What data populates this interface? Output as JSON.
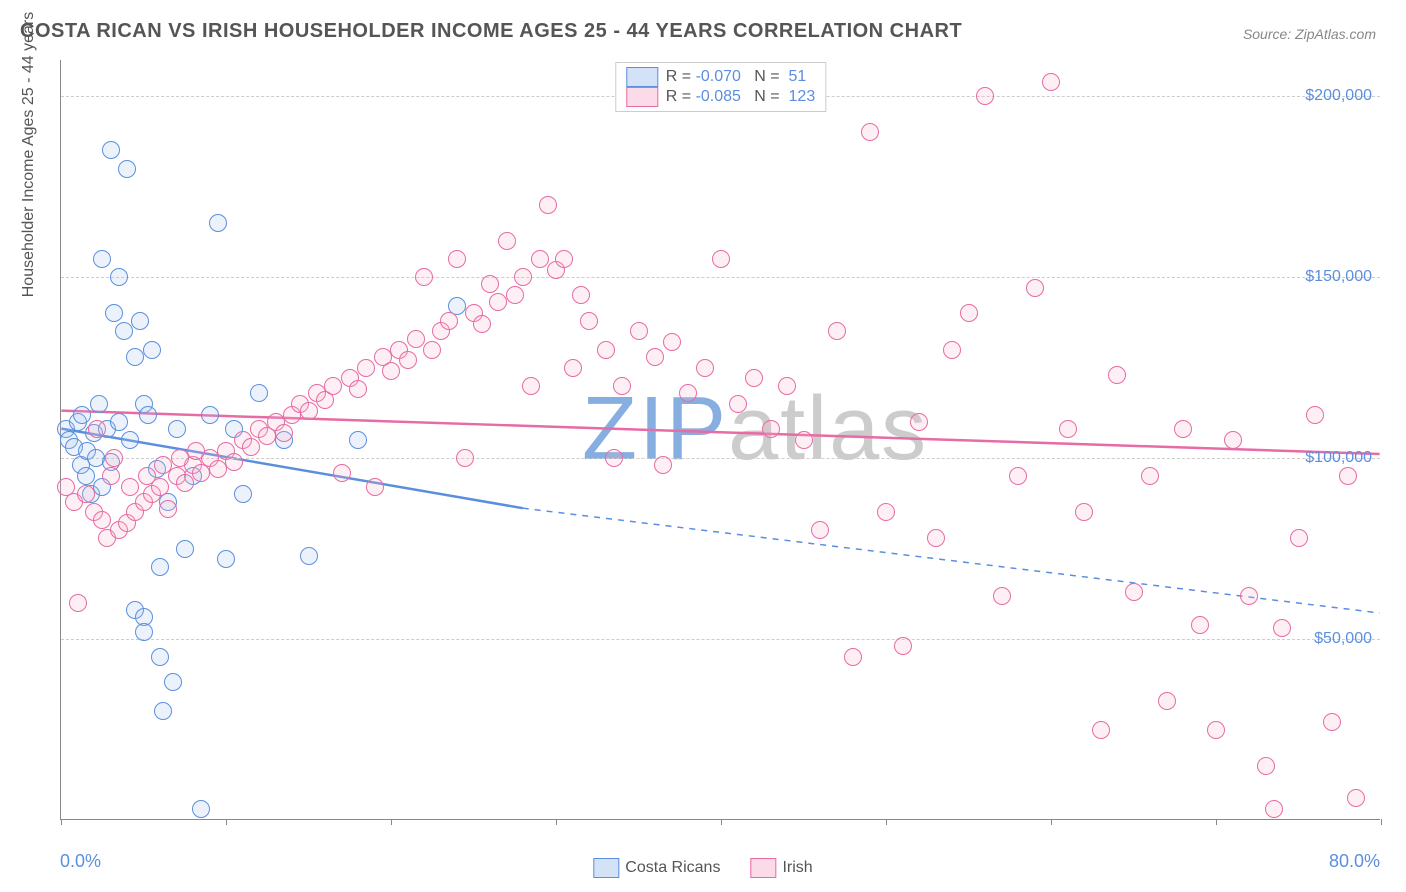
{
  "title": "COSTA RICAN VS IRISH HOUSEHOLDER INCOME AGES 25 - 44 YEARS CORRELATION CHART",
  "source_prefix": "Source: ",
  "source": "ZipAtlas.com",
  "y_axis_title": "Householder Income Ages 25 - 44 years",
  "watermark": {
    "part1": "ZIP",
    "part2": "atlas",
    "color1": "#86aee0",
    "color2": "#cccccc"
  },
  "chart": {
    "type": "scatter",
    "xlim": [
      0,
      80
    ],
    "ylim": [
      0,
      210000
    ],
    "x_ticks": [
      0,
      10,
      20,
      30,
      40,
      50,
      60,
      70,
      80
    ],
    "y_ticks": [
      50000,
      100000,
      150000,
      200000
    ],
    "y_tick_labels": [
      "$50,000",
      "$100,000",
      "$150,000",
      "$200,000"
    ],
    "x_axis_min_label": "0.0%",
    "x_axis_max_label": "80.0%",
    "grid_color": "#cccccc",
    "background_color": "#ffffff",
    "tick_label_color": "#5b8fde",
    "marker_radius": 9,
    "marker_stroke_width": 1.2,
    "marker_fill_opacity": 0.22
  },
  "series": [
    {
      "name": "Costa Ricans",
      "color_stroke": "#5b8fde",
      "color_fill": "#a9c5ef",
      "legend": {
        "R_label": "R =",
        "R": "-0.070",
        "N_label": "N =",
        "N": "51"
      },
      "trend": {
        "start": {
          "x": 0,
          "y": 108000
        },
        "solid_end": {
          "x": 28,
          "y": 86000
        },
        "dash_end": {
          "x": 80,
          "y": 57000
        },
        "width": 2.5
      },
      "points": [
        {
          "x": 0.3,
          "y": 108000
        },
        {
          "x": 0.5,
          "y": 105000
        },
        {
          "x": 0.8,
          "y": 103000
        },
        {
          "x": 1.0,
          "y": 110000
        },
        {
          "x": 1.2,
          "y": 98000
        },
        {
          "x": 1.3,
          "y": 112000
        },
        {
          "x": 1.5,
          "y": 95000
        },
        {
          "x": 1.6,
          "y": 102000
        },
        {
          "x": 1.8,
          "y": 90000
        },
        {
          "x": 2.0,
          "y": 107000
        },
        {
          "x": 2.1,
          "y": 100000
        },
        {
          "x": 2.3,
          "y": 115000
        },
        {
          "x": 2.5,
          "y": 92000
        },
        {
          "x": 2.5,
          "y": 155000
        },
        {
          "x": 2.8,
          "y": 108000
        },
        {
          "x": 3.0,
          "y": 99000
        },
        {
          "x": 3.0,
          "y": 185000
        },
        {
          "x": 3.2,
          "y": 140000
        },
        {
          "x": 3.5,
          "y": 150000
        },
        {
          "x": 3.5,
          "y": 110000
        },
        {
          "x": 3.8,
          "y": 135000
        },
        {
          "x": 4.0,
          "y": 180000
        },
        {
          "x": 4.2,
          "y": 105000
        },
        {
          "x": 4.5,
          "y": 128000
        },
        {
          "x": 4.5,
          "y": 58000
        },
        {
          "x": 4.8,
          "y": 138000
        },
        {
          "x": 5.0,
          "y": 115000
        },
        {
          "x": 5.0,
          "y": 56000
        },
        {
          "x": 5.0,
          "y": 52000
        },
        {
          "x": 5.3,
          "y": 112000
        },
        {
          "x": 5.5,
          "y": 130000
        },
        {
          "x": 5.8,
          "y": 97000
        },
        {
          "x": 6.0,
          "y": 70000
        },
        {
          "x": 6.2,
          "y": 30000
        },
        {
          "x": 6.5,
          "y": 88000
        },
        {
          "x": 6.8,
          "y": 38000
        },
        {
          "x": 7.0,
          "y": 108000
        },
        {
          "x": 7.5,
          "y": 75000
        },
        {
          "x": 8.0,
          "y": 95000
        },
        {
          "x": 8.5,
          "y": 3000
        },
        {
          "x": 9.0,
          "y": 112000
        },
        {
          "x": 9.5,
          "y": 165000
        },
        {
          "x": 10.0,
          "y": 72000
        },
        {
          "x": 10.5,
          "y": 108000
        },
        {
          "x": 11.0,
          "y": 90000
        },
        {
          "x": 12.0,
          "y": 118000
        },
        {
          "x": 13.5,
          "y": 105000
        },
        {
          "x": 15.0,
          "y": 73000
        },
        {
          "x": 18.0,
          "y": 105000
        },
        {
          "x": 24.0,
          "y": 142000
        },
        {
          "x": 6.0,
          "y": 45000
        }
      ]
    },
    {
      "name": "Irish",
      "color_stroke": "#e76ba5",
      "color_fill": "#f7b8cf",
      "legend": {
        "R_label": "R =",
        "R": "-0.085",
        "N_label": "N =",
        "N": "123"
      },
      "trend": {
        "start": {
          "x": 0,
          "y": 113000
        },
        "solid_end": {
          "x": 80,
          "y": 101000
        },
        "dash_end": null,
        "width": 2.5
      },
      "points": [
        {
          "x": 0.3,
          "y": 92000
        },
        {
          "x": 0.8,
          "y": 88000
        },
        {
          "x": 1.0,
          "y": 60000
        },
        {
          "x": 1.5,
          "y": 90000
        },
        {
          "x": 2.0,
          "y": 85000
        },
        {
          "x": 2.5,
          "y": 83000
        },
        {
          "x": 2.8,
          "y": 78000
        },
        {
          "x": 3.0,
          "y": 95000
        },
        {
          "x": 3.5,
          "y": 80000
        },
        {
          "x": 4.0,
          "y": 82000
        },
        {
          "x": 4.5,
          "y": 85000
        },
        {
          "x": 5.0,
          "y": 88000
        },
        {
          "x": 5.5,
          "y": 90000
        },
        {
          "x": 6.0,
          "y": 92000
        },
        {
          "x": 6.5,
          "y": 86000
        },
        {
          "x": 7.0,
          "y": 95000
        },
        {
          "x": 7.5,
          "y": 93000
        },
        {
          "x": 8.0,
          "y": 98000
        },
        {
          "x": 8.5,
          "y": 96000
        },
        {
          "x": 9.0,
          "y": 100000
        },
        {
          "x": 9.5,
          "y": 97000
        },
        {
          "x": 10.0,
          "y": 102000
        },
        {
          "x": 10.5,
          "y": 99000
        },
        {
          "x": 11.0,
          "y": 105000
        },
        {
          "x": 11.5,
          "y": 103000
        },
        {
          "x": 12.0,
          "y": 108000
        },
        {
          "x": 12.5,
          "y": 106000
        },
        {
          "x": 13.0,
          "y": 110000
        },
        {
          "x": 13.5,
          "y": 107000
        },
        {
          "x": 14.0,
          "y": 112000
        },
        {
          "x": 14.5,
          "y": 115000
        },
        {
          "x": 15.0,
          "y": 113000
        },
        {
          "x": 15.5,
          "y": 118000
        },
        {
          "x": 16.0,
          "y": 116000
        },
        {
          "x": 16.5,
          "y": 120000
        },
        {
          "x": 17.0,
          "y": 96000
        },
        {
          "x": 17.5,
          "y": 122000
        },
        {
          "x": 18.0,
          "y": 119000
        },
        {
          "x": 18.5,
          "y": 125000
        },
        {
          "x": 19.0,
          "y": 92000
        },
        {
          "x": 19.5,
          "y": 128000
        },
        {
          "x": 20.0,
          "y": 124000
        },
        {
          "x": 20.5,
          "y": 130000
        },
        {
          "x": 21.0,
          "y": 127000
        },
        {
          "x": 21.5,
          "y": 133000
        },
        {
          "x": 22.0,
          "y": 150000
        },
        {
          "x": 22.5,
          "y": 130000
        },
        {
          "x": 23.0,
          "y": 135000
        },
        {
          "x": 23.5,
          "y": 138000
        },
        {
          "x": 24.0,
          "y": 155000
        },
        {
          "x": 24.5,
          "y": 100000
        },
        {
          "x": 25.0,
          "y": 140000
        },
        {
          "x": 25.5,
          "y": 137000
        },
        {
          "x": 26.0,
          "y": 148000
        },
        {
          "x": 26.5,
          "y": 143000
        },
        {
          "x": 27.0,
          "y": 160000
        },
        {
          "x": 27.5,
          "y": 145000
        },
        {
          "x": 28.0,
          "y": 150000
        },
        {
          "x": 28.5,
          "y": 120000
        },
        {
          "x": 29.0,
          "y": 155000
        },
        {
          "x": 29.5,
          "y": 170000
        },
        {
          "x": 30.0,
          "y": 152000
        },
        {
          "x": 30.5,
          "y": 155000
        },
        {
          "x": 31.0,
          "y": 125000
        },
        {
          "x": 31.5,
          "y": 145000
        },
        {
          "x": 32.0,
          "y": 138000
        },
        {
          "x": 33.0,
          "y": 130000
        },
        {
          "x": 34.0,
          "y": 120000
        },
        {
          "x": 35.0,
          "y": 135000
        },
        {
          "x": 36.0,
          "y": 128000
        },
        {
          "x": 37.0,
          "y": 132000
        },
        {
          "x": 38.0,
          "y": 118000
        },
        {
          "x": 39.0,
          "y": 125000
        },
        {
          "x": 40.0,
          "y": 155000
        },
        {
          "x": 41.0,
          "y": 115000
        },
        {
          "x": 42.0,
          "y": 122000
        },
        {
          "x": 43.0,
          "y": 108000
        },
        {
          "x": 44.0,
          "y": 120000
        },
        {
          "x": 45.0,
          "y": 105000
        },
        {
          "x": 46.0,
          "y": 80000
        },
        {
          "x": 47.0,
          "y": 135000
        },
        {
          "x": 48.0,
          "y": 45000
        },
        {
          "x": 49.0,
          "y": 190000
        },
        {
          "x": 50.0,
          "y": 85000
        },
        {
          "x": 51.0,
          "y": 48000
        },
        {
          "x": 52.0,
          "y": 110000
        },
        {
          "x": 53.0,
          "y": 78000
        },
        {
          "x": 54.0,
          "y": 130000
        },
        {
          "x": 55.0,
          "y": 140000
        },
        {
          "x": 56.0,
          "y": 200000
        },
        {
          "x": 57.0,
          "y": 62000
        },
        {
          "x": 58.0,
          "y": 95000
        },
        {
          "x": 59.0,
          "y": 147000
        },
        {
          "x": 60.0,
          "y": 204000
        },
        {
          "x": 61.0,
          "y": 108000
        },
        {
          "x": 62.0,
          "y": 85000
        },
        {
          "x": 63.0,
          "y": 25000
        },
        {
          "x": 64.0,
          "y": 123000
        },
        {
          "x": 65.0,
          "y": 63000
        },
        {
          "x": 66.0,
          "y": 95000
        },
        {
          "x": 67.0,
          "y": 33000
        },
        {
          "x": 68.0,
          "y": 108000
        },
        {
          "x": 69.0,
          "y": 54000
        },
        {
          "x": 70.0,
          "y": 25000
        },
        {
          "x": 71.0,
          "y": 105000
        },
        {
          "x": 72.0,
          "y": 62000
        },
        {
          "x": 73.0,
          "y": 15000
        },
        {
          "x": 74.0,
          "y": 53000
        },
        {
          "x": 75.0,
          "y": 78000
        },
        {
          "x": 76.0,
          "y": 112000
        },
        {
          "x": 77.0,
          "y": 27000
        },
        {
          "x": 78.0,
          "y": 95000
        },
        {
          "x": 78.5,
          "y": 6000
        },
        {
          "x": 73.5,
          "y": 3000
        },
        {
          "x": 2.2,
          "y": 108000
        },
        {
          "x": 3.2,
          "y": 100000
        },
        {
          "x": 4.2,
          "y": 92000
        },
        {
          "x": 5.2,
          "y": 95000
        },
        {
          "x": 6.2,
          "y": 98000
        },
        {
          "x": 7.2,
          "y": 100000
        },
        {
          "x": 8.2,
          "y": 102000
        },
        {
          "x": 33.5,
          "y": 100000
        },
        {
          "x": 36.5,
          "y": 98000
        }
      ]
    }
  ],
  "bottom_legend": [
    {
      "label": "Costa Ricans",
      "fill": "#a9c5ef",
      "stroke": "#5b8fde"
    },
    {
      "label": "Irish",
      "fill": "#f7b8cf",
      "stroke": "#e76ba5"
    }
  ]
}
